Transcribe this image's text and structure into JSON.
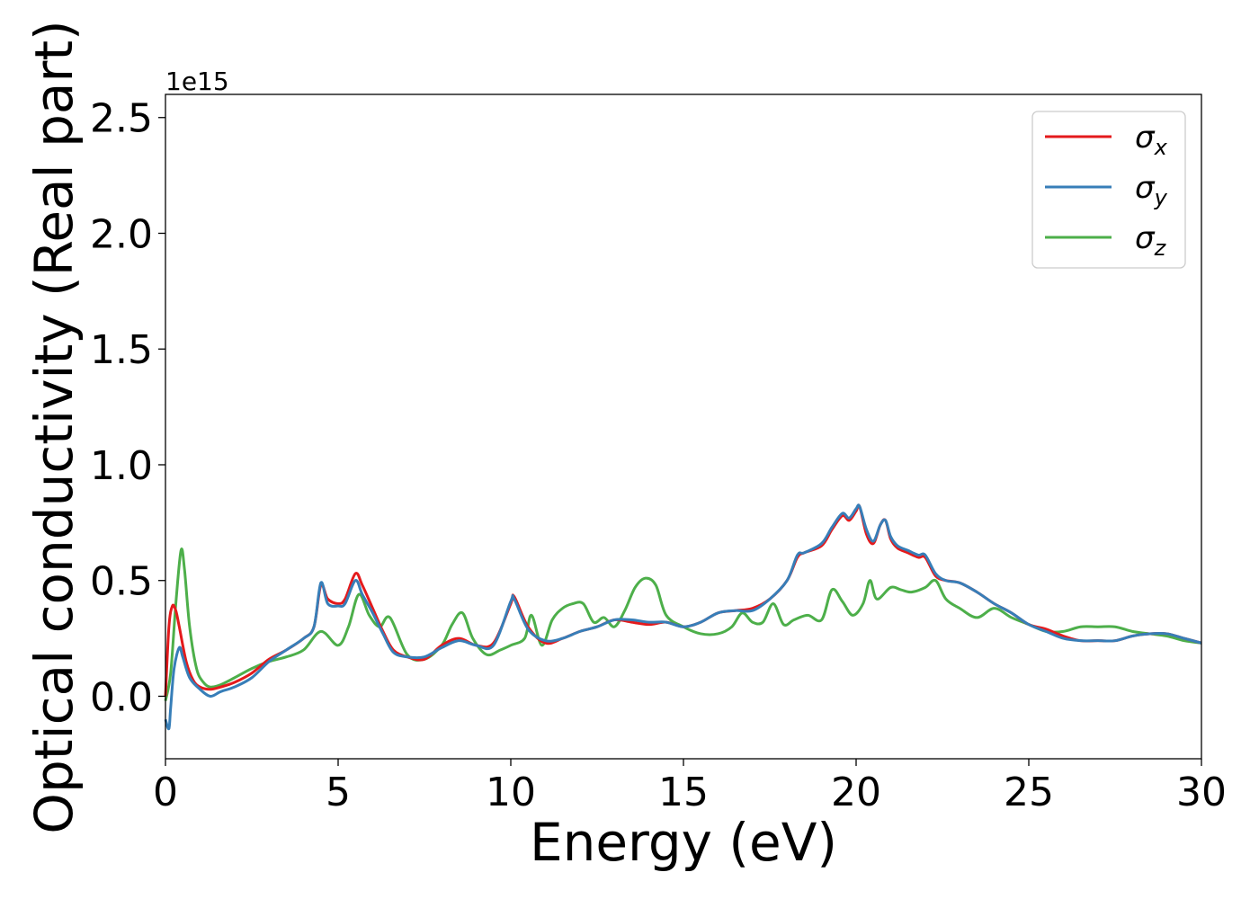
{
  "chart_data": {
    "type": "line",
    "title": "",
    "xlabel": "Energy (eV)",
    "ylabel": "Optical conductivity (Real part)",
    "y_offset_label": "1e15",
    "y_scale": 1000000000000000.0,
    "xlim": [
      0,
      30
    ],
    "ylim": [
      -0.27,
      2.6
    ],
    "x_ticks": [
      0,
      5,
      10,
      15,
      20,
      25,
      30
    ],
    "x_tick_labels": [
      "0",
      "5",
      "10",
      "15",
      "20",
      "25",
      "30"
    ],
    "y_ticks": [
      0.0,
      0.5,
      1.0,
      1.5,
      2.0,
      2.5
    ],
    "y_tick_labels": [
      "0.0",
      "0.5",
      "1.0",
      "1.5",
      "2.0",
      "2.5"
    ],
    "grid": false,
    "legend_position": "top-right",
    "series": [
      {
        "name": "σ",
        "subscript": "x",
        "color": "#e41a1c",
        "x": [
          0,
          0.1,
          0.2,
          0.3,
          0.4,
          0.6,
          0.8,
          1.0,
          1.3,
          1.6,
          2.0,
          2.5,
          3.0,
          3.5,
          4.0,
          4.3,
          4.5,
          4.7,
          5.0,
          5.2,
          5.5,
          5.7,
          6.0,
          6.3,
          6.6,
          7.0,
          7.5,
          8.0,
          8.5,
          9.0,
          9.5,
          10.0,
          10.1,
          10.5,
          11.0,
          11.5,
          12.0,
          12.5,
          13.0,
          13.5,
          14.0,
          14.5,
          15.0,
          15.5,
          16.0,
          16.5,
          17.0,
          17.5,
          18.0,
          18.3,
          18.5,
          19.0,
          19.3,
          19.6,
          19.8,
          20.0,
          20.1,
          20.3,
          20.5,
          20.7,
          20.85,
          21.0,
          21.2,
          21.5,
          21.8,
          22.0,
          22.3,
          22.6,
          23.0,
          23.5,
          24.0,
          24.5,
          25.0,
          25.5,
          26.0,
          26.5,
          27.0,
          27.5,
          28.0,
          28.5,
          29.0,
          29.5,
          30.0
        ],
        "values": [
          0.0,
          0.3,
          0.39,
          0.37,
          0.3,
          0.15,
          0.07,
          0.04,
          0.03,
          0.04,
          0.06,
          0.1,
          0.16,
          0.2,
          0.25,
          0.3,
          0.48,
          0.42,
          0.4,
          0.42,
          0.53,
          0.48,
          0.38,
          0.28,
          0.2,
          0.17,
          0.16,
          0.22,
          0.25,
          0.22,
          0.23,
          0.4,
          0.43,
          0.3,
          0.23,
          0.25,
          0.28,
          0.3,
          0.33,
          0.32,
          0.31,
          0.32,
          0.3,
          0.32,
          0.36,
          0.37,
          0.38,
          0.42,
          0.5,
          0.6,
          0.62,
          0.65,
          0.72,
          0.78,
          0.76,
          0.8,
          0.82,
          0.7,
          0.66,
          0.74,
          0.76,
          0.68,
          0.64,
          0.62,
          0.6,
          0.6,
          0.52,
          0.5,
          0.49,
          0.45,
          0.4,
          0.36,
          0.31,
          0.29,
          0.26,
          0.24,
          0.24,
          0.24,
          0.26,
          0.27,
          0.27,
          0.25,
          0.23
        ]
      },
      {
        "name": "σ",
        "subscript": "y",
        "color": "#377eb8",
        "x": [
          0,
          0.1,
          0.15,
          0.25,
          0.4,
          0.5,
          0.7,
          1.0,
          1.3,
          1.6,
          2.0,
          2.5,
          3.0,
          3.5,
          4.0,
          4.3,
          4.5,
          4.7,
          5.0,
          5.2,
          5.5,
          5.7,
          6.0,
          6.3,
          6.6,
          7.0,
          7.5,
          8.0,
          8.5,
          9.0,
          9.5,
          10.0,
          10.1,
          10.5,
          11.0,
          11.5,
          12.0,
          12.5,
          13.0,
          13.5,
          14.0,
          14.5,
          15.0,
          15.5,
          16.0,
          16.5,
          17.0,
          17.5,
          18.0,
          18.3,
          18.5,
          19.0,
          19.3,
          19.6,
          19.8,
          20.0,
          20.1,
          20.3,
          20.5,
          20.7,
          20.85,
          21.0,
          21.2,
          21.5,
          21.8,
          22.0,
          22.3,
          22.6,
          23.0,
          23.5,
          24.0,
          24.5,
          25.0,
          25.5,
          26.0,
          26.5,
          27.0,
          27.5,
          28.0,
          28.5,
          29.0,
          29.5,
          30.0
        ],
        "values": [
          -0.1,
          -0.14,
          -0.05,
          0.12,
          0.21,
          0.17,
          0.08,
          0.03,
          0.0,
          0.02,
          0.04,
          0.08,
          0.15,
          0.2,
          0.25,
          0.3,
          0.49,
          0.4,
          0.39,
          0.4,
          0.5,
          0.44,
          0.36,
          0.27,
          0.19,
          0.17,
          0.17,
          0.21,
          0.24,
          0.22,
          0.22,
          0.41,
          0.42,
          0.29,
          0.24,
          0.25,
          0.28,
          0.3,
          0.33,
          0.33,
          0.32,
          0.32,
          0.3,
          0.32,
          0.36,
          0.37,
          0.37,
          0.42,
          0.5,
          0.61,
          0.62,
          0.66,
          0.73,
          0.79,
          0.77,
          0.81,
          0.82,
          0.72,
          0.67,
          0.74,
          0.76,
          0.69,
          0.65,
          0.63,
          0.61,
          0.61,
          0.53,
          0.5,
          0.49,
          0.45,
          0.4,
          0.36,
          0.31,
          0.28,
          0.25,
          0.24,
          0.24,
          0.24,
          0.26,
          0.27,
          0.27,
          0.25,
          0.23
        ]
      },
      {
        "name": "σ",
        "subscript": "z",
        "color": "#4daf4a",
        "x": [
          0,
          0.15,
          0.3,
          0.45,
          0.55,
          0.7,
          0.9,
          1.1,
          1.3,
          1.6,
          2.0,
          2.5,
          3.0,
          3.5,
          4.0,
          4.5,
          5.0,
          5.3,
          5.6,
          5.9,
          6.2,
          6.5,
          7.0,
          7.5,
          8.0,
          8.3,
          8.6,
          8.9,
          9.3,
          9.7,
          10.0,
          10.4,
          10.6,
          10.9,
          11.2,
          11.5,
          11.8,
          12.1,
          12.4,
          12.7,
          13.0,
          13.3,
          13.6,
          13.9,
          14.2,
          14.5,
          15.0,
          15.5,
          16.0,
          16.4,
          16.7,
          17.0,
          17.3,
          17.6,
          17.9,
          18.2,
          18.6,
          19.0,
          19.3,
          19.6,
          19.9,
          20.2,
          20.4,
          20.6,
          21.0,
          21.3,
          21.6,
          22.0,
          22.3,
          22.6,
          23.0,
          23.5,
          24.0,
          24.5,
          25.0,
          25.5,
          26.0,
          26.5,
          27.0,
          27.5,
          28.0,
          28.5,
          29.0,
          29.5,
          30.0
        ],
        "values": [
          -0.02,
          0.1,
          0.4,
          0.63,
          0.55,
          0.3,
          0.12,
          0.06,
          0.04,
          0.05,
          0.08,
          0.12,
          0.15,
          0.17,
          0.2,
          0.28,
          0.22,
          0.3,
          0.44,
          0.35,
          0.3,
          0.34,
          0.18,
          0.16,
          0.22,
          0.31,
          0.36,
          0.25,
          0.18,
          0.2,
          0.22,
          0.25,
          0.35,
          0.22,
          0.33,
          0.38,
          0.4,
          0.4,
          0.32,
          0.34,
          0.3,
          0.37,
          0.47,
          0.51,
          0.48,
          0.35,
          0.3,
          0.27,
          0.27,
          0.3,
          0.36,
          0.32,
          0.32,
          0.4,
          0.31,
          0.33,
          0.35,
          0.33,
          0.46,
          0.41,
          0.35,
          0.4,
          0.5,
          0.42,
          0.47,
          0.46,
          0.45,
          0.47,
          0.5,
          0.42,
          0.38,
          0.34,
          0.38,
          0.34,
          0.31,
          0.28,
          0.28,
          0.3,
          0.3,
          0.3,
          0.28,
          0.27,
          0.26,
          0.24,
          0.23
        ]
      }
    ]
  }
}
